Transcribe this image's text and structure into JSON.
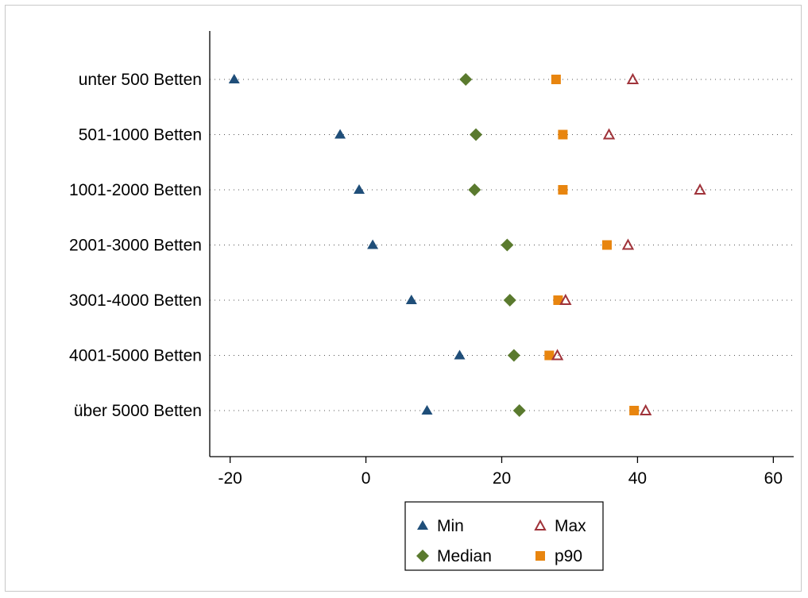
{
  "chart_data": {
    "type": "scatter",
    "orientation": "horizontal-dot-plot",
    "categories": [
      "unter 500 Betten",
      "501-1000 Betten",
      "1001-2000 Betten",
      "2001-3000 Betten",
      "3001-4000 Betten",
      "4001-5000 Betten",
      "über 5000 Betten"
    ],
    "series": [
      {
        "name": "Min",
        "marker": "triangle-filled",
        "color": "#1f4e79",
        "values": [
          -19.4,
          -3.8,
          -1.0,
          1.0,
          6.7,
          13.8,
          9.0
        ]
      },
      {
        "name": "Median",
        "marker": "diamond",
        "color": "#5a7a2e",
        "values": [
          14.7,
          16.2,
          16.0,
          20.8,
          21.2,
          21.8,
          22.6
        ]
      },
      {
        "name": "p90",
        "marker": "square",
        "color": "#e8850f",
        "values": [
          28.0,
          29.0,
          29.0,
          35.5,
          28.3,
          27.0,
          39.5
        ]
      },
      {
        "name": "Max",
        "marker": "triangle-open",
        "color": "#a0333a",
        "values": [
          39.3,
          35.8,
          49.2,
          38.6,
          29.4,
          28.2,
          41.2
        ]
      }
    ],
    "x_ticks": [
      -20,
      0,
      20,
      40,
      60
    ],
    "xlim": [
      -23,
      63
    ],
    "grid": "dotted-horizontal",
    "legend_position": "bottom",
    "title": "",
    "xlabel": "",
    "ylabel": ""
  }
}
